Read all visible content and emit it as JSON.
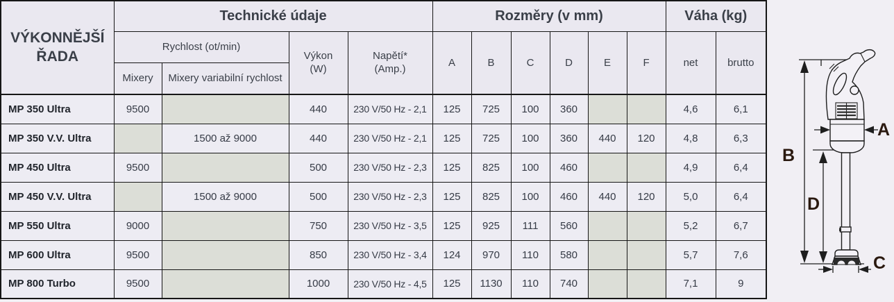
{
  "header": {
    "series_title": "VÝKONNĚJŠÍ ŘADA",
    "group_technical": "Technické údaje",
    "group_dimensions": "Rozměry (v mm)",
    "group_weight": "Váha (kg)",
    "speed": "Rychlost (ot/min)",
    "mixers": "Mixery",
    "mixers_variable": "Mixery variabilní rychlost",
    "power_line1": "Výkon",
    "power_line2": "(W)",
    "voltage_line1": "Napětí*",
    "voltage_line2": "(Amp.)",
    "dim_a": "A",
    "dim_b": "B",
    "dim_c": "C",
    "dim_d": "D",
    "dim_e": "E",
    "dim_f": "F",
    "weight_net": "net",
    "weight_brutto": "brutto"
  },
  "rows": [
    {
      "model": "MP 350 Ultra",
      "mixery": "9500",
      "variable": "",
      "power": "440",
      "voltage": "230 V/50 Hz - 2,1",
      "a": "125",
      "b": "725",
      "c": "100",
      "d": "360",
      "e": "",
      "f": "",
      "net": "4,6",
      "brutto": "6,1"
    },
    {
      "model": "MP 350 V.V. Ultra",
      "mixery": "",
      "variable": "1500 až 9000",
      "power": "440",
      "voltage": "230 V/50 Hz - 2,1",
      "a": "125",
      "b": "725",
      "c": "100",
      "d": "360",
      "e": "440",
      "f": "120",
      "net": "4,8",
      "brutto": "6,3"
    },
    {
      "model": "MP 450 Ultra",
      "mixery": "9500",
      "variable": "",
      "power": "500",
      "voltage": "230 V/50 Hz - 2,3",
      "a": "125",
      "b": "825",
      "c": "100",
      "d": "460",
      "e": "",
      "f": "",
      "net": "4,9",
      "brutto": "6,4"
    },
    {
      "model": "MP 450 V.V. Ultra",
      "mixery": "",
      "variable": "1500 až 9000",
      "power": "500",
      "voltage": "230 V/50 Hz - 2,3",
      "a": "125",
      "b": "825",
      "c": "100",
      "d": "460",
      "e": "440",
      "f": "120",
      "net": "5,0",
      "brutto": "6,4"
    },
    {
      "model": "MP 550 Ultra",
      "mixery": "9000",
      "variable": "",
      "power": "750",
      "voltage": "230 V/50 Hz - 3,5",
      "a": "125",
      "b": "925",
      "c": "111",
      "d": "560",
      "e": "",
      "f": "",
      "net": "5,2",
      "brutto": "6,7"
    },
    {
      "model": "MP 600 Ultra",
      "mixery": "9500",
      "variable": "",
      "power": "850",
      "voltage": "230 V/50 Hz - 3,4",
      "a": "124",
      "b": "970",
      "c": "110",
      "d": "580",
      "e": "",
      "f": "",
      "net": "5,7",
      "brutto": "7,6"
    },
    {
      "model": "MP 800 Turbo",
      "mixery": "9500",
      "variable": "",
      "power": "1000",
      "voltage": "230 V/50 Hz - 4,5",
      "a": "125",
      "b": "1130",
      "c": "110",
      "d": "740",
      "e": "",
      "f": "",
      "net": "7,1",
      "brutto": "9"
    }
  ],
  "diagram": {
    "label_a": "A",
    "label_b": "B",
    "label_c": "C",
    "label_d": "D"
  },
  "colors": {
    "page_bg": "#f1eff4",
    "cell_bg": "#edecf3",
    "header_bg": "#eae8f0",
    "empty_cell_bg": "#dcded7",
    "border": "#161616",
    "group_header_text": "#56595d",
    "data_text": "#363b46",
    "model_text": "#21252c",
    "series_header_text": "#6e7173",
    "diagram_label_text": "#2a190f"
  }
}
